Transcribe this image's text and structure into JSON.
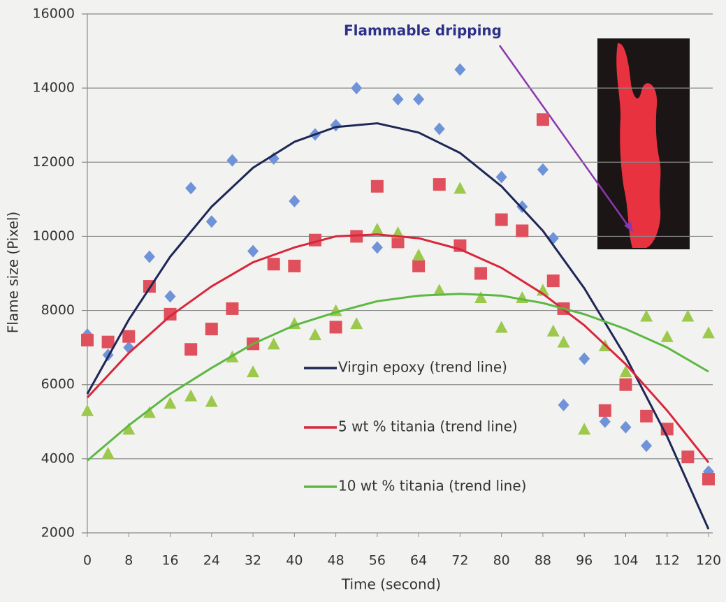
{
  "chart_data": {
    "type": "scatter",
    "annotation": "Flammable dripping",
    "xlabel": "Time (second)",
    "ylabel": "Flame size (Pixel)",
    "xlim": [
      0,
      120
    ],
    "xticks": [
      0,
      8,
      16,
      24,
      32,
      40,
      48,
      56,
      64,
      72,
      80,
      88,
      96,
      104,
      112,
      120
    ],
    "ylim": [
      2000,
      16000
    ],
    "yticks": [
      2000,
      4000,
      6000,
      8000,
      10000,
      12000,
      14000,
      16000
    ],
    "grid": true,
    "trend_x": [
      0,
      8,
      16,
      24,
      32,
      40,
      48,
      56,
      64,
      72,
      80,
      88,
      96,
      104,
      112,
      120
    ],
    "series": [
      {
        "name": "Virgin epoxy (trend line)",
        "marker": "diamond",
        "color": "#6f93d8",
        "line_color": "#1e2656",
        "x": [
          0,
          4,
          8,
          12,
          16,
          20,
          24,
          28,
          32,
          36,
          40,
          44,
          48,
          52,
          56,
          60,
          64,
          68,
          72,
          80,
          84,
          88,
          90,
          92,
          96,
          100,
          104,
          108,
          120
        ],
        "values": [
          7350,
          6800,
          7000,
          9450,
          8380,
          11300,
          10400,
          12050,
          9600,
          12100,
          10950,
          12750,
          13000,
          14000,
          9700,
          13700,
          13700,
          12900,
          14500,
          11600,
          10800,
          11800,
          9950,
          5450,
          6700,
          5000,
          4850,
          4350,
          3650
        ],
        "trend_values": [
          5750,
          7750,
          9450,
          10800,
          11850,
          12550,
          12950,
          13050,
          12800,
          12250,
          11350,
          10150,
          8600,
          6750,
          4600,
          2100
        ]
      },
      {
        "name": "5 wt % titania (trend line)",
        "marker": "square",
        "color": "#e0505c",
        "line_color": "#d8263c",
        "x": [
          0,
          4,
          8,
          12,
          16,
          20,
          24,
          28,
          32,
          36,
          40,
          44,
          48,
          52,
          56,
          60,
          64,
          68,
          72,
          76,
          80,
          84,
          88,
          90,
          92,
          100,
          104,
          108,
          112,
          116,
          120
        ],
        "values": [
          7200,
          7150,
          7300,
          8650,
          7900,
          6950,
          7500,
          8050,
          7100,
          9250,
          9200,
          9900,
          7550,
          10000,
          11350,
          9850,
          9200,
          11400,
          9750,
          9000,
          10450,
          10150,
          13150,
          8800,
          8050,
          5300,
          6000,
          5150,
          4800,
          4050,
          3450
        ],
        "trend_values": [
          5650,
          6850,
          7850,
          8650,
          9300,
          9700,
          10000,
          10050,
          9950,
          9650,
          9150,
          8450,
          7600,
          6550,
          5300,
          3900
        ]
      },
      {
        "name": "10 wt % titania (trend line)",
        "marker": "triangle",
        "color": "#9cc84c",
        "line_color": "#5cb843",
        "x": [
          0,
          4,
          8,
          12,
          16,
          20,
          24,
          28,
          32,
          36,
          40,
          44,
          48,
          52,
          56,
          60,
          64,
          68,
          72,
          76,
          80,
          84,
          88,
          90,
          92,
          96,
          100,
          104,
          108,
          112,
          116,
          120
        ],
        "values": [
          5300,
          4150,
          4800,
          5250,
          5500,
          5700,
          5550,
          6750,
          6350,
          7100,
          7650,
          7350,
          8000,
          7650,
          10200,
          10100,
          9500,
          8550,
          11300,
          8350,
          7550,
          8350,
          8550,
          7450,
          7150,
          4800,
          7050,
          6350,
          7850,
          7300,
          7850,
          7400
        ],
        "trend_values": [
          3950,
          4900,
          5750,
          6450,
          7100,
          7600,
          7950,
          8250,
          8400,
          8450,
          8400,
          8200,
          7900,
          7500,
          7000,
          6350
        ]
      }
    ]
  }
}
